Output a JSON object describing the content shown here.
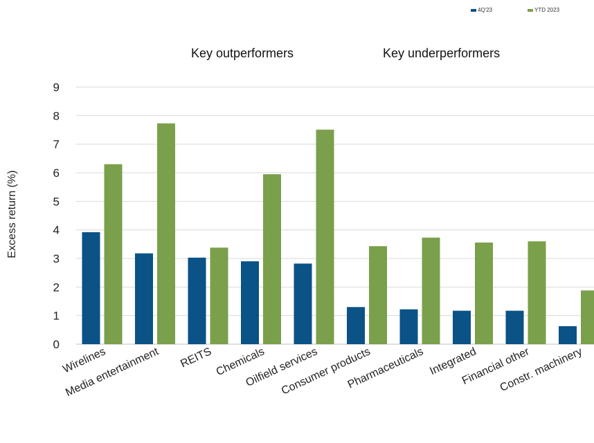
{
  "chart_data": {
    "type": "bar",
    "categories": [
      "Wirelines",
      "Media entertainment",
      "REITS",
      "Chemicals",
      "Oilfield services",
      "Consumer products",
      "Pharmaceuticals",
      "Integrated",
      "Financial other",
      "Constr. machinery"
    ],
    "series": [
      {
        "name": "4Q'23",
        "color": "#0b5286",
        "values": [
          3.92,
          3.18,
          3.03,
          2.9,
          2.82,
          1.3,
          1.22,
          1.17,
          1.17,
          0.63
        ]
      },
      {
        "name": "YTD 2023",
        "color": "#7aa04b",
        "values": [
          6.3,
          7.73,
          3.38,
          5.95,
          7.51,
          3.43,
          3.73,
          3.56,
          3.6,
          1.88
        ]
      }
    ],
    "ylabel": "Excess return (%)",
    "ylim": [
      0,
      9
    ],
    "yticks": [
      0,
      1,
      2,
      3,
      4,
      5,
      6,
      7,
      8,
      9
    ],
    "grid": true,
    "legend_position": "top-right",
    "annotations": [
      "Key outperformers",
      "Key underperformers"
    ]
  }
}
